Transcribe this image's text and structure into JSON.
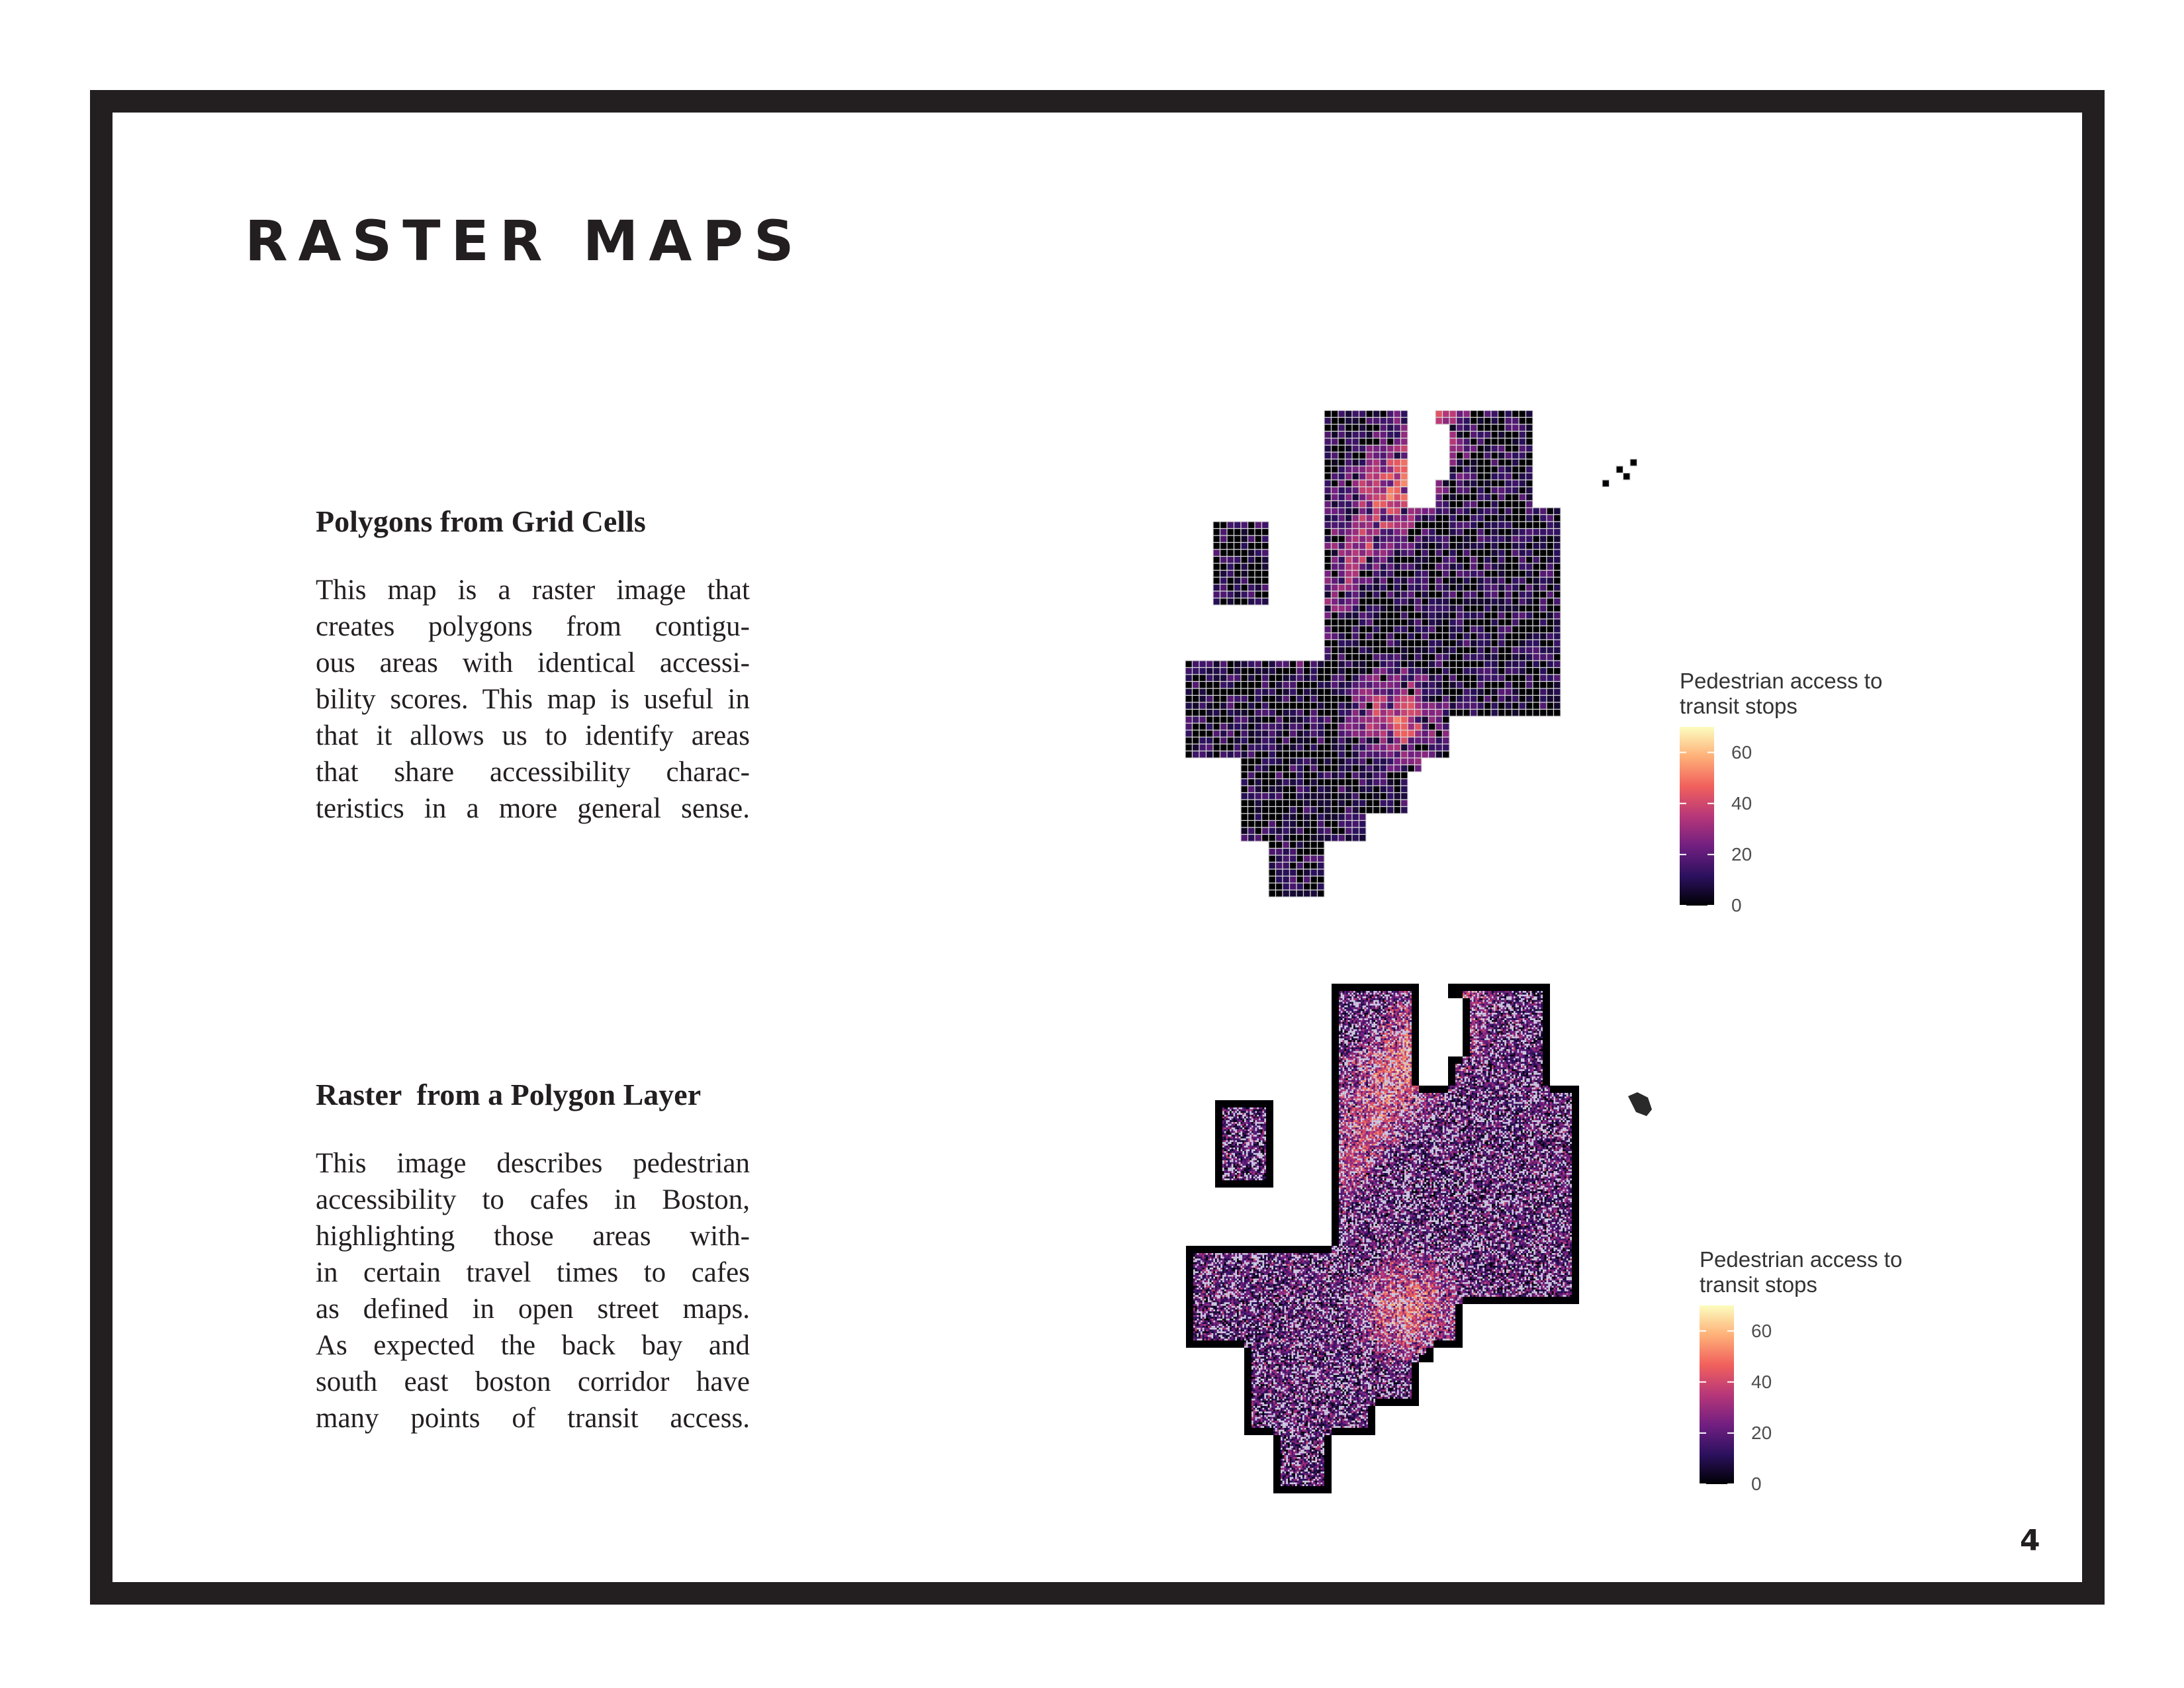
{
  "page": {
    "title": "RASTER MAPS",
    "page_number": "4",
    "frame_color": "#231f20"
  },
  "sections": [
    {
      "heading": "Polygons from Grid Cells",
      "lines": [
        "This map is a raster image that",
        "creates polygons from contigu-",
        "ous areas with identical accessi-",
        "bility scores. This map is useful in",
        "that it allows us to identify areas",
        "that share accessibility charac-",
        "teristics in a more general sense."
      ]
    },
    {
      "heading": "Raster  from a Polygon Layer",
      "lines": [
        "This image describes pedestrian",
        "accessibility to cafes in Boston,",
        "highlighting those areas with-",
        "in certain travel times to cafes",
        "as defined in open street maps.",
        "As expected the back bay and",
        "south east boston corridor have",
        "many points of transit access."
      ]
    }
  ],
  "maps": [
    {
      "kind": "grid-cells",
      "legend": {
        "title_lines": [
          "Pedestrian access to",
          "transit stops"
        ],
        "ticks": [
          "0",
          "20",
          "40",
          "60"
        ],
        "tick_values": [
          0,
          20,
          40,
          60
        ],
        "range": [
          0,
          70
        ]
      }
    },
    {
      "kind": "polygon-raster",
      "legend": {
        "title_lines": [
          "Pedestrian access to",
          "transit stops"
        ],
        "ticks": [
          "0",
          "20",
          "40",
          "60"
        ],
        "tick_values": [
          0,
          20,
          40,
          60
        ],
        "range": [
          0,
          70
        ]
      }
    }
  ],
  "colors": {
    "scale": [
      "#000004",
      "#2c115f",
      "#721f81",
      "#b73779",
      "#f1605d",
      "#feb078",
      "#fcfdbf"
    ],
    "grid_line": "#d9d9d9",
    "text": "#231f20"
  }
}
